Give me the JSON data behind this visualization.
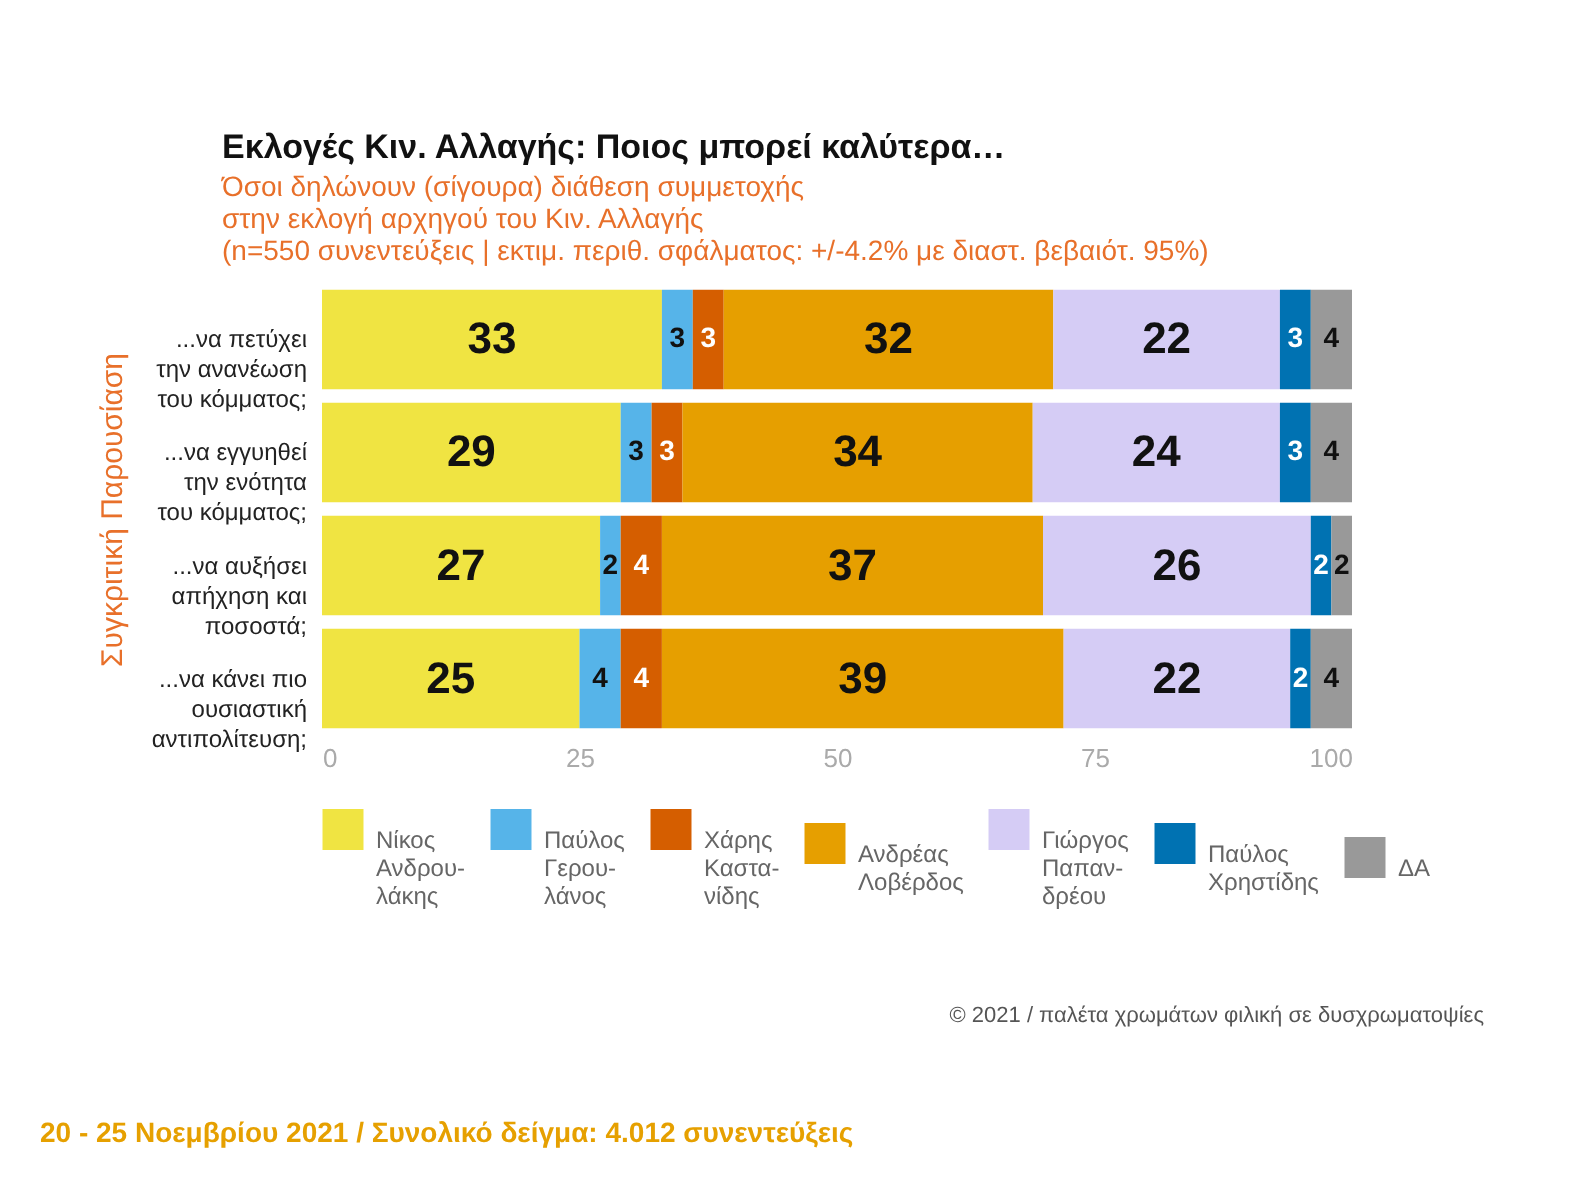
{
  "chart_data": {
    "type": "bar",
    "orientation": "horizontal",
    "stacked": true,
    "data_labels": true,
    "grid": false,
    "legend": "bottom",
    "title": "Εκλογές Κιν. Αλλαγής: Ποιος μπορεί καλύτερα…",
    "subtitle": "Όσοι δηλώνουν (σίγουρα) διάθεση συμμετοχής\nστην εκλογή αρχηγού του Κιν. Αλλαγής\n(n=550 συνεντεύξεις | εκτιμ. περιθ. σφάλματος: +/-4.2% με διαστ. βεβαιότ. 95%)",
    "ylabel": "Συγκριτική  Παρουσίαση",
    "categories": [
      "...να πετύχει\nτην ανανέωση\nτου κόμματος;",
      "...να εγγυηθεί\nτην ενότητα\nτου κόμματος;",
      "...να αυξήσει\nαπήχηση και\nποσοστά;",
      "...να κάνει πιο\nουσιαστική\nαντιπολίτευση;"
    ],
    "xlim": [
      0,
      100
    ],
    "xticks": [
      0,
      25,
      50,
      75,
      100
    ],
    "series": [
      {
        "name": "Νίκος\nΑνδρου-\nλάκης",
        "color": "#f0e442",
        "values": [
          33,
          29,
          27,
          25
        ]
      },
      {
        "name": "Παύλος\nΓερου-\nλάνος",
        "color": "#56b4e9",
        "values": [
          3,
          3,
          2,
          4
        ]
      },
      {
        "name": "Χάρης\nΚαστα-\nνίδης",
        "color": "#d55e00",
        "values": [
          3,
          3,
          4,
          4
        ]
      },
      {
        "name": "Ανδρέας\nΛοβέρδος",
        "color": "#e69f00",
        "values": [
          32,
          34,
          37,
          39
        ]
      },
      {
        "name": "Γιώργος\nΠαπαν-\nδρέου",
        "color": "#d5ccf5",
        "values": [
          22,
          24,
          26,
          22
        ]
      },
      {
        "name": "Παύλος\nΧρηστίδης",
        "color": "#0072b2",
        "values": [
          3,
          3,
          2,
          2
        ]
      },
      {
        "name": "ΔΑ",
        "color": "#999999",
        "values": [
          4,
          4,
          2,
          4
        ]
      }
    ],
    "annotations": [
      "© 2021  /  παλέτα χρωμάτων φιλική σε δυσχρωματοψίες",
      "20 - 25  Νοεμβρίου 2021  /  Συνολικό δείγμα:  4.012 συνεντεύξεις"
    ]
  }
}
